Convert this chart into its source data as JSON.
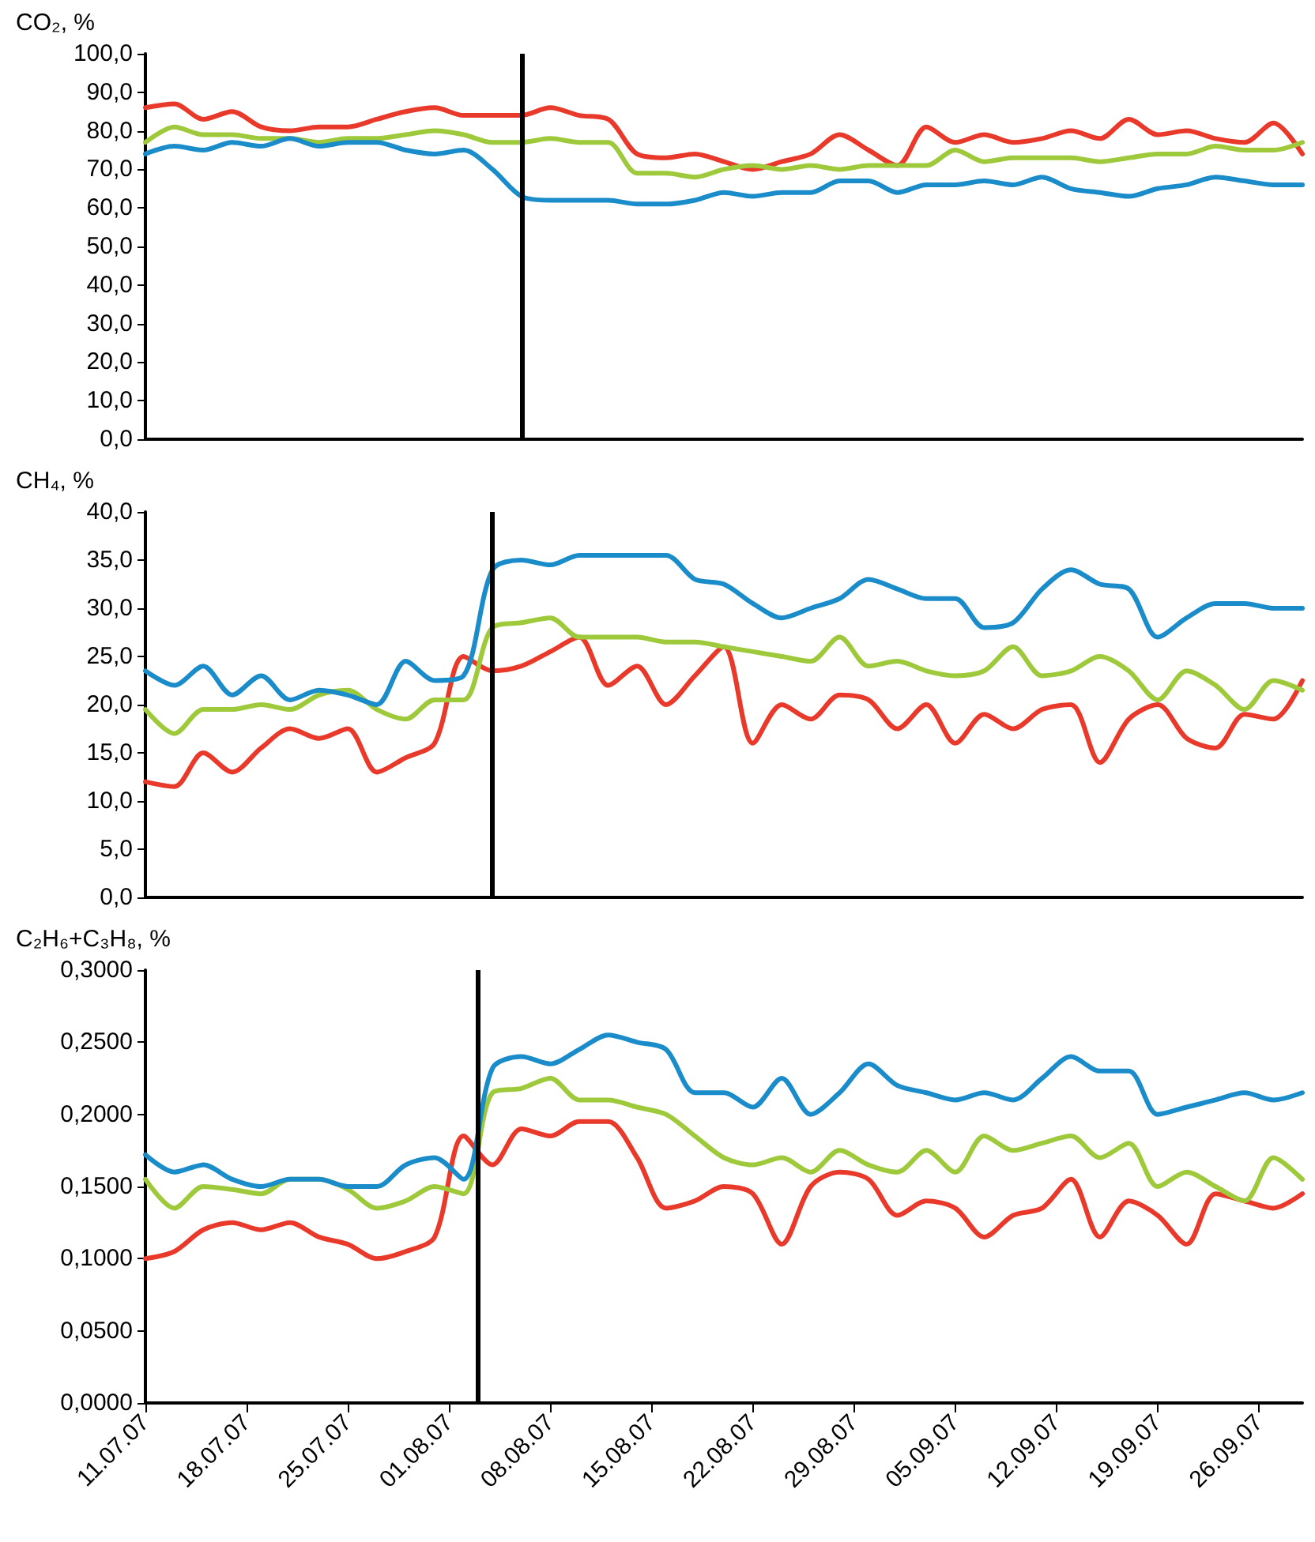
{
  "chart_data": [
    {
      "type": "line",
      "ylabel": "CO₂, %",
      "x": [
        "--07-11",
        "--07-13",
        "--07-15",
        "--07-17",
        "--07-19",
        "--07-21",
        "--07-23",
        "--07-25",
        "--07-27",
        "--07-29",
        "--07-31",
        "--08-02",
        "--08-04",
        "--08-06",
        "--08-08",
        "--08-10",
        "--08-12",
        "--08-14",
        "--08-16",
        "--08-18",
        "--08-20",
        "--08-22",
        "--08-24",
        "--08-26",
        "--08-28",
        "--08-30",
        "--09-01",
        "--09-03",
        "--09-05",
        "--09-07",
        "--09-09",
        "--09-11",
        "--09-13",
        "--09-15",
        "--09-17",
        "--09-19",
        "--09-21",
        "--09-23",
        "--09-25",
        "--09-27",
        "--09-29"
      ],
      "xlim": [
        "--07-11",
        "--09-29"
      ],
      "ylim": [
        0,
        100
      ],
      "yticks": [
        {
          "value": 0,
          "label": "0,0"
        },
        {
          "value": 10,
          "label": "10,0"
        },
        {
          "value": 20,
          "label": "20,0"
        },
        {
          "value": 30,
          "label": "30,0"
        },
        {
          "value": 40,
          "label": "40,0"
        },
        {
          "value": 50,
          "label": "50,0"
        },
        {
          "value": 60,
          "label": "60,0"
        },
        {
          "value": 70,
          "label": "70,0"
        },
        {
          "value": 80,
          "label": "80,0"
        },
        {
          "value": 90,
          "label": "90,0"
        },
        {
          "value": 100,
          "label": "100,0"
        }
      ],
      "tick_labels": "y",
      "grid": false,
      "marker": "none",
      "line_style": "solid",
      "ref_lines": [
        {
          "axis": "x",
          "value": "--08-06",
          "color": "#000000"
        }
      ],
      "series": [
        {
          "color": "#e8392b",
          "values": [
            86,
            87,
            83,
            85,
            81,
            80,
            81,
            81,
            83,
            85,
            86,
            84,
            84,
            84,
            86,
            84,
            83,
            74,
            73,
            74,
            72,
            70,
            72,
            74,
            79,
            75,
            71,
            81,
            77,
            79,
            77,
            78,
            80,
            78,
            83,
            79,
            80,
            78,
            77,
            82,
            74
          ]
        },
        {
          "color": "#9dc93b",
          "values": [
            77,
            81,
            79,
            79,
            78,
            78,
            77,
            78,
            78,
            79,
            80,
            79,
            77,
            77,
            78,
            77,
            77,
            69,
            69,
            68,
            70,
            71,
            70,
            71,
            70,
            71,
            71,
            71,
            75,
            72,
            73,
            73,
            73,
            72,
            73,
            74,
            74,
            76,
            75,
            75,
            77
          ]
        },
        {
          "color": "#1a8cc9",
          "values": [
            74,
            76,
            75,
            77,
            76,
            78,
            76,
            77,
            77,
            75,
            74,
            75,
            70,
            63,
            62,
            62,
            62,
            61,
            61,
            62,
            64,
            63,
            64,
            64,
            67,
            67,
            64,
            66,
            66,
            67,
            66,
            68,
            65,
            64,
            63,
            65,
            66,
            68,
            67,
            66,
            66
          ]
        }
      ]
    },
    {
      "type": "line",
      "ylabel": "CH₄, %",
      "x": [
        "--07-11",
        "--07-13",
        "--07-15",
        "--07-17",
        "--07-19",
        "--07-21",
        "--07-23",
        "--07-25",
        "--07-27",
        "--07-29",
        "--07-31",
        "--08-02",
        "--08-04",
        "--08-06",
        "--08-08",
        "--08-10",
        "--08-12",
        "--08-14",
        "--08-16",
        "--08-18",
        "--08-20",
        "--08-22",
        "--08-24",
        "--08-26",
        "--08-28",
        "--08-30",
        "--09-01",
        "--09-03",
        "--09-05",
        "--09-07",
        "--09-09",
        "--09-11",
        "--09-13",
        "--09-15",
        "--09-17",
        "--09-19",
        "--09-21",
        "--09-23",
        "--09-25",
        "--09-27",
        "--09-29"
      ],
      "xlim": [
        "--07-11",
        "--09-29"
      ],
      "ylim": [
        0,
        40
      ],
      "yticks": [
        {
          "value": 0,
          "label": "0,0"
        },
        {
          "value": 5,
          "label": "5,0"
        },
        {
          "value": 10,
          "label": "10,0"
        },
        {
          "value": 15,
          "label": "15,0"
        },
        {
          "value": 20,
          "label": "20,0"
        },
        {
          "value": 25,
          "label": "25,0"
        },
        {
          "value": 30,
          "label": "30,0"
        },
        {
          "value": 35,
          "label": "35,0"
        },
        {
          "value": 40,
          "label": "40,0"
        }
      ],
      "tick_labels": "y",
      "grid": false,
      "marker": "none",
      "line_style": "solid",
      "ref_lines": [
        {
          "axis": "x",
          "value": "--08-04",
          "color": "#000000"
        }
      ],
      "series": [
        {
          "color": "#e8392b",
          "values": [
            12,
            11.5,
            15,
            13,
            15.5,
            17.5,
            16.5,
            17.5,
            13,
            14.5,
            16,
            25,
            23.5,
            24,
            25.5,
            27,
            22,
            24,
            20,
            23,
            26,
            16,
            20,
            18.5,
            21,
            20.5,
            17.5,
            20,
            16,
            19,
            17.5,
            19.5,
            20,
            14,
            18.5,
            20,
            16.5,
            15.5,
            19,
            18.5,
            22.5
          ]
        },
        {
          "color": "#9dc93b",
          "values": [
            19.5,
            17,
            19.5,
            19.5,
            20,
            19.5,
            21,
            21.5,
            19.5,
            18.5,
            20.5,
            20.5,
            28,
            28.5,
            29,
            27,
            27,
            27,
            26.5,
            26.5,
            26,
            25.5,
            25,
            24.5,
            27,
            24,
            24.5,
            23.5,
            23,
            23.5,
            26,
            23,
            23.5,
            25,
            23.5,
            20.5,
            23.5,
            22,
            19.5,
            22.5,
            21.5
          ]
        },
        {
          "color": "#1a8cc9",
          "values": [
            23.5,
            22,
            24,
            21,
            23,
            20.5,
            21.5,
            21,
            20,
            24.5,
            22.5,
            23,
            34,
            35,
            34.5,
            35.5,
            35.5,
            35.5,
            35.5,
            33,
            32.5,
            30.5,
            29,
            30,
            31,
            33,
            32,
            31,
            31,
            28,
            28.5,
            32,
            34,
            32.5,
            32,
            27,
            29,
            30.5,
            30.5,
            30,
            30
          ]
        }
      ]
    },
    {
      "type": "line",
      "ylabel": "C₂H₆+C₃H₈, %",
      "x": [
        "--07-11",
        "--07-13",
        "--07-15",
        "--07-17",
        "--07-19",
        "--07-21",
        "--07-23",
        "--07-25",
        "--07-27",
        "--07-29",
        "--07-31",
        "--08-02",
        "--08-04",
        "--08-06",
        "--08-08",
        "--08-10",
        "--08-12",
        "--08-14",
        "--08-16",
        "--08-18",
        "--08-20",
        "--08-22",
        "--08-24",
        "--08-26",
        "--08-28",
        "--08-30",
        "--09-01",
        "--09-03",
        "--09-05",
        "--09-07",
        "--09-09",
        "--09-11",
        "--09-13",
        "--09-15",
        "--09-17",
        "--09-19",
        "--09-21",
        "--09-23",
        "--09-25",
        "--09-27",
        "--09-29"
      ],
      "xlim": [
        "--07-11",
        "--09-29"
      ],
      "ylim": [
        0,
        0.3
      ],
      "xticks": [
        {
          "value": "--07-11",
          "label": "11.07.07"
        },
        {
          "value": "--07-18",
          "label": "18.07.07"
        },
        {
          "value": "--07-25",
          "label": "25.07.07"
        },
        {
          "value": "--08-01",
          "label": "01.08.07"
        },
        {
          "value": "--08-08",
          "label": "08.08.07"
        },
        {
          "value": "--08-15",
          "label": "15.08.07"
        },
        {
          "value": "--08-22",
          "label": "22.08.07"
        },
        {
          "value": "--08-29",
          "label": "29.08.07"
        },
        {
          "value": "--09-05",
          "label": "05.09.07"
        },
        {
          "value": "--09-12",
          "label": "12.09.07"
        },
        {
          "value": "--09-19",
          "label": "19.09.07"
        },
        {
          "value": "--09-26",
          "label": "26.09.07"
        }
      ],
      "yticks": [
        {
          "value": 0,
          "label": "0,0000"
        },
        {
          "value": 0.05,
          "label": "0,0500"
        },
        {
          "value": 0.1,
          "label": "0,1000"
        },
        {
          "value": 0.15,
          "label": "0,1500"
        },
        {
          "value": 0.2,
          "label": "0,2000"
        },
        {
          "value": 0.25,
          "label": "0,2500"
        },
        {
          "value": 0.3,
          "label": "0,3000"
        }
      ],
      "grid": false,
      "marker": "none",
      "line_style": "solid",
      "ref_lines": [
        {
          "axis": "x",
          "value": "--08-03",
          "color": "#000000"
        }
      ],
      "series": [
        {
          "color": "#e8392b",
          "values": [
            0.1,
            0.105,
            0.12,
            0.125,
            0.12,
            0.125,
            0.115,
            0.11,
            0.1,
            0.105,
            0.115,
            0.185,
            0.165,
            0.19,
            0.185,
            0.195,
            0.195,
            0.17,
            0.135,
            0.14,
            0.15,
            0.145,
            0.11,
            0.15,
            0.16,
            0.155,
            0.13,
            0.14,
            0.135,
            0.115,
            0.13,
            0.135,
            0.155,
            0.115,
            0.14,
            0.13,
            0.11,
            0.145,
            0.14,
            0.135,
            0.145
          ]
        },
        {
          "color": "#9dc93b",
          "values": [
            0.155,
            0.135,
            0.15,
            0.148,
            0.145,
            0.155,
            0.155,
            0.148,
            0.135,
            0.14,
            0.15,
            0.145,
            0.215,
            0.218,
            0.225,
            0.21,
            0.21,
            0.205,
            0.2,
            0.185,
            0.17,
            0.165,
            0.17,
            0.16,
            0.175,
            0.165,
            0.16,
            0.175,
            0.16,
            0.185,
            0.175,
            0.18,
            0.185,
            0.17,
            0.18,
            0.15,
            0.16,
            0.15,
            0.14,
            0.17,
            0.155
          ]
        },
        {
          "color": "#1a8cc9",
          "values": [
            0.172,
            0.16,
            0.165,
            0.155,
            0.15,
            0.155,
            0.155,
            0.15,
            0.15,
            0.165,
            0.17,
            0.155,
            0.232,
            0.24,
            0.235,
            0.245,
            0.255,
            0.25,
            0.245,
            0.215,
            0.215,
            0.205,
            0.225,
            0.2,
            0.215,
            0.235,
            0.22,
            0.215,
            0.21,
            0.215,
            0.21,
            0.225,
            0.24,
            0.23,
            0.23,
            0.2,
            0.205,
            0.21,
            0.215,
            0.21,
            0.215
          ]
        }
      ]
    }
  ]
}
